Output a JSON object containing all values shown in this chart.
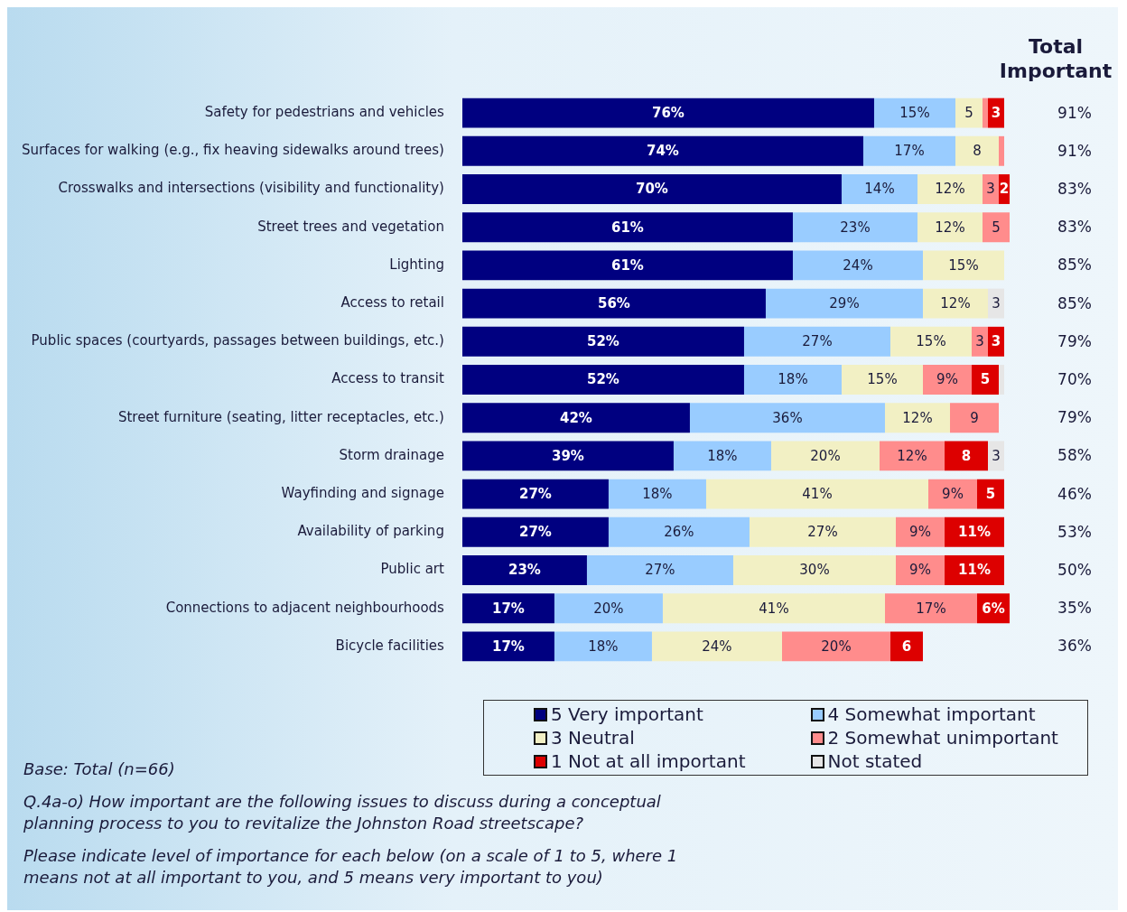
{
  "chart_data": {
    "type": "bar",
    "orientation": "horizontal",
    "stacked": true,
    "categories": [
      "Safety for pedestrians and vehicles",
      "Surfaces for walking (e.g., fix heaving sidewalks around trees)",
      "Crosswalks and intersections (visibility and functionality)",
      "Street trees and vegetation",
      "Lighting",
      "Access to retail",
      "Public spaces (courtyards, passages between buildings, etc.)",
      "Access to transit",
      "Street furniture (seating, litter receptacles, etc.)",
      "Storm drainage",
      "Wayfinding and signage",
      "Availability of parking",
      "Public art",
      "Connections to adjacent neighbourhoods",
      "Bicycle facilities"
    ],
    "series": [
      {
        "name": "5 Very important",
        "color": "#000080",
        "values": [
          76,
          74,
          70,
          61,
          61,
          56,
          52,
          52,
          42,
          39,
          27,
          27,
          23,
          17,
          17
        ],
        "value_labels": [
          "76%",
          "74%",
          "70%",
          "61%",
          "61%",
          "56%",
          "52%",
          "52%",
          "42%",
          "39%",
          "27%",
          "27%",
          "23%",
          "17%",
          "17%"
        ]
      },
      {
        "name": "4  Somewhat important",
        "color": "#99ccff",
        "values": [
          15,
          17,
          14,
          23,
          24,
          29,
          27,
          18,
          36,
          18,
          18,
          26,
          27,
          20,
          18
        ],
        "value_labels": [
          "15%",
          "17%",
          "14%",
          "23%",
          "24%",
          "29%",
          "27%",
          "18%",
          "36%",
          "18%",
          "18%",
          "26%",
          "27%",
          "20%",
          "18%"
        ]
      },
      {
        "name": "3 Neutral",
        "color": "#f2f0c4",
        "values": [
          5,
          8,
          12,
          12,
          15,
          12,
          15,
          15,
          12,
          20,
          41,
          27,
          30,
          41,
          24
        ],
        "value_labels": [
          "5",
          "8",
          "12%",
          "12%",
          "15%",
          "12%",
          "15%",
          "15%",
          "12%",
          "20%",
          "41%",
          "27%",
          "30%",
          "41%",
          "24%"
        ]
      },
      {
        "name": "2  Somewhat unimportant",
        "color": "#ff8c8c",
        "values": [
          1,
          1,
          3,
          5,
          0,
          0,
          3,
          9,
          9,
          12,
          9,
          9,
          9,
          17,
          20
        ],
        "value_labels": [
          null,
          null,
          "3",
          "5",
          null,
          null,
          "3",
          "9%",
          "9",
          "12%",
          "9%",
          "9%",
          "9%",
          "17%",
          "20%"
        ]
      },
      {
        "name": "1 Not at all important",
        "color": "#dd0000",
        "values": [
          3,
          0,
          2,
          0,
          0,
          0,
          3,
          5,
          0,
          8,
          5,
          11,
          11,
          6,
          6
        ],
        "value_labels": [
          "3",
          null,
          "2",
          null,
          null,
          null,
          "3",
          "5",
          null,
          "8",
          "5",
          "11%",
          "11%",
          "6%",
          "6"
        ]
      },
      {
        "name": "Not stated",
        "color": "#e6e6e6",
        "values": [
          0,
          0,
          0,
          0,
          0,
          3,
          0,
          1,
          0,
          3,
          0,
          0,
          0,
          0,
          0
        ],
        "value_labels": [
          null,
          null,
          null,
          null,
          null,
          "3",
          null,
          null,
          null,
          "3",
          null,
          null,
          null,
          null,
          null
        ]
      }
    ],
    "y2label": "Total Important",
    "legend": "bottom right",
    "annotations": [
      "91%",
      "91%",
      "83%",
      "83%",
      "85%",
      "85%",
      "79%",
      "70%",
      "79%",
      "58%",
      "46%",
      "53%",
      "50%",
      "35%",
      "36%",
      "Base:  Total (n=66)",
      "Q.4a-o) How important are the following issues to discuss during a conceptual planning process to you to revitalize the Johnston Road streetscape?",
      "Please indicate level of importance for each below (on a scale of 1 to 5, where 1 means not at all important to you, and 5 means very important to you)"
    ]
  }
}
